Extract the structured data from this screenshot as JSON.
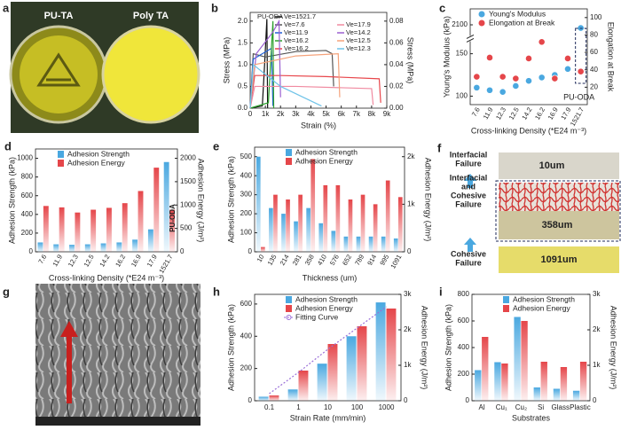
{
  "panels": {
    "a": {
      "label": "a",
      "captions": [
        "PU-TA",
        "Poly TA"
      ]
    },
    "f": {
      "label": "f",
      "annotations": [
        [
          "Interfacial",
          "Failure"
        ],
        [
          "Interfacial",
          "and",
          "Cohesive",
          "Failure"
        ],
        [
          "Cohesive",
          "Failure"
        ]
      ],
      "image_labels": [
        "10um",
        "358um",
        "1091um"
      ]
    },
    "g": {
      "label": "g"
    }
  },
  "chart_data": [
    {
      "panel": "b",
      "type": "line",
      "x_label": "Strain (%)",
      "y_label": "Stress (MPa)",
      "y2_label": "Stress (MPa)",
      "annotation": "PU-ODA",
      "xlim": [
        0,
        9000
      ],
      "xticks": [
        0,
        {
          "value": 1000,
          "label": "1k"
        },
        {
          "value": 2000,
          "label": "2k"
        },
        {
          "value": 3000,
          "label": "3k"
        },
        {
          "value": 4000,
          "label": "4k"
        },
        {
          "value": 5000,
          "label": "5k"
        },
        {
          "value": 6000,
          "label": "6k"
        },
        {
          "value": 7000,
          "label": "7k"
        },
        {
          "value": 8000,
          "label": "8k"
        },
        {
          "value": 9000,
          "label": "9k"
        }
      ],
      "ylim": [
        0,
        2.2
      ],
      "yticks": [
        {
          "value": 0,
          "label": "0.0"
        },
        {
          "value": 0.5,
          "label": "0.5"
        },
        {
          "value": 1,
          "label": "1.0"
        },
        {
          "value": 1.5,
          "label": "1.5"
        },
        {
          "value": 2,
          "label": "2.0"
        }
      ],
      "y2lim": [
        0,
        0.088
      ],
      "y2ticks": [
        {
          "value": 0,
          "label": "0.00"
        },
        {
          "value": 0.02,
          "label": "0.02"
        },
        {
          "value": 0.04,
          "label": "0.04"
        },
        {
          "value": 0.06,
          "label": "0.06"
        },
        {
          "value": 0.08,
          "label": "0.08"
        }
      ],
      "series": [
        {
          "name": "Ve=1521.7",
          "color": "#111111",
          "x": [
            0,
            800,
            950,
            1100,
            1150
          ],
          "values": [
            0,
            0.05,
            1.0,
            2.05,
            0
          ]
        },
        {
          "name": "Ve=7.6",
          "color": "#555555",
          "axis": "y2",
          "x": [
            0,
            200,
            1000,
            3000,
            5000,
            5400,
            5500
          ],
          "values": [
            0,
            0.05,
            0.047,
            0.052,
            0.053,
            0.05,
            0.02
          ]
        },
        {
          "name": "Ve=11.9",
          "color": "#1f5fd6",
          "axis": "y2",
          "x": [
            0,
            200,
            800,
            1400,
            1500
          ],
          "values": [
            0,
            0.045,
            0.05,
            0.055,
            0.002
          ]
        },
        {
          "name": "Ve=16.2",
          "color": "#2ca02c",
          "axis": "y2",
          "x": [
            0,
            1200,
            1500,
            1550
          ],
          "values": [
            0,
            0.005,
            0.08,
            0
          ]
        },
        {
          "name": "Ve=16.2",
          "color": "#e8464b",
          "axis": "y2",
          "x": [
            0,
            300,
            2000,
            5000,
            8500,
            8600
          ],
          "values": [
            0,
            0.03,
            0.03,
            0.029,
            0.027,
            0.005
          ]
        },
        {
          "name": "Ve=17.9",
          "color": "#f08aa0",
          "axis": "y2",
          "x": [
            0,
            300,
            3000,
            8000,
            8100
          ],
          "values": [
            0,
            0.02,
            0.02,
            0.018,
            0.003
          ]
        },
        {
          "name": "Ve=14.2",
          "color": "#9a5fd0",
          "axis": "y2",
          "x": [
            0,
            400,
            1500,
            1900,
            2000
          ],
          "values": [
            0,
            0.05,
            0.07,
            0.08,
            0.01
          ]
        },
        {
          "name": "Ve=12.5",
          "color": "#f5a27a",
          "axis": "y2",
          "x": [
            0,
            300,
            3000,
            5800,
            5900
          ],
          "values": [
            0,
            0.04,
            0.048,
            0.05,
            0.01
          ]
        },
        {
          "name": "Ve=12.3",
          "color": "#6fc3e8",
          "axis": "y2",
          "x": [
            0,
            200,
            2000,
            4700
          ],
          "values": [
            0,
            0.04,
            0.02,
            0.002
          ]
        }
      ]
    },
    {
      "panel": "c",
      "type": "scatter",
      "x_label": "Cross-linking Density (*E24 m⁻³)",
      "y_label": "Young's Modulus (kPa)",
      "y2_label": "Elongation at Break",
      "annotation": "PU-ODA",
      "categories": [
        "7.6",
        "11.9",
        "12.3",
        "12.5",
        "14.2",
        "16.2",
        "16.9",
        "17.9",
        "1521.7"
      ],
      "ylim": [
        90,
        2200
      ],
      "y_break": [
        160,
        2050
      ],
      "yticks": [
        100,
        150,
        2100
      ],
      "y2lim": [
        0,
        110
      ],
      "y2ticks": [
        20,
        40,
        60,
        80,
        100
      ],
      "series": [
        {
          "name": "Young's Modulus",
          "color": "#4aa8e0",
          "values": [
            110,
            107,
            105,
            112,
            118,
            122,
            125,
            132,
            2080
          ]
        },
        {
          "name": "Elongation at Break",
          "color": "#e5464a",
          "axis": "y2",
          "values": [
            32,
            54,
            32,
            30,
            53,
            72,
            30,
            53,
            38
          ]
        }
      ]
    },
    {
      "panel": "d",
      "type": "bar",
      "x_label": "Cross-linking Density (*E24 m⁻³)",
      "y_label": "Adhesion Strength (kPa)",
      "y2_label": "Adhesion Energy (J/m²)",
      "annotation": "PU-ODA",
      "categories": [
        "7.6",
        "11.9",
        "12.3",
        "12.5",
        "14.2",
        "16.2",
        "16.9",
        "17.9",
        "1521.7"
      ],
      "ylim": [
        0,
        1100
      ],
      "yticks": [
        0,
        200,
        400,
        600,
        800,
        1000
      ],
      "y2lim": [
        0,
        2200
      ],
      "y2ticks": [
        0,
        500,
        1000,
        1500,
        2000
      ],
      "series": [
        {
          "name": "Adhesion Strength",
          "color": "#4aa8e0",
          "values": [
            100,
            80,
            75,
            80,
            90,
            100,
            130,
            240,
            960
          ]
        },
        {
          "name": "Adhesion Energy",
          "color": "#e5464a",
          "axis": "y2",
          "values": [
            980,
            950,
            840,
            900,
            940,
            1040,
            1300,
            1800,
            900
          ]
        }
      ]
    },
    {
      "panel": "e",
      "type": "bar",
      "x_label": "Thickness (um)",
      "y_label": "Adhesion Strength (kPa)",
      "y2_label": "Adhesion Energy (J/m²)",
      "categories": [
        "10",
        "135",
        "214",
        "281",
        "358",
        "410",
        "576",
        "652",
        "789",
        "914",
        "995",
        "1091"
      ],
      "ylim": [
        0,
        550
      ],
      "yticks": [
        0,
        100,
        200,
        300,
        400,
        500
      ],
      "y2lim": [
        0,
        2200
      ],
      "y2ticks": [
        0,
        {
          "value": 1000,
          "label": "1k"
        },
        {
          "value": 2000,
          "label": "2k"
        }
      ],
      "series": [
        {
          "name": "Adhesion Strength",
          "color": "#4aa8e0",
          "values": [
            500,
            230,
            200,
            160,
            230,
            150,
            110,
            80,
            80,
            80,
            80,
            70
          ]
        },
        {
          "name": "Adhesion Energy",
          "color": "#e5464a",
          "axis": "y2",
          "values": [
            100,
            1200,
            1100,
            1200,
            1950,
            1400,
            1400,
            1100,
            1200,
            1000,
            1500,
            1150
          ]
        }
      ]
    },
    {
      "panel": "h",
      "type": "bar",
      "x_label": "Strain Rate (mm/min)",
      "y_label": "Adhesion Strength (kPa)",
      "y2_label": "Adhesion Energy (J/m²)",
      "categories": [
        "0.1",
        "1",
        "10",
        "100",
        "1000"
      ],
      "ylim": [
        0,
        660
      ],
      "yticks": [
        0,
        200,
        400,
        600
      ],
      "y2lim": [
        0,
        3000
      ],
      "y2ticks": [
        0,
        {
          "value": 1000,
          "label": "1k"
        },
        {
          "value": 2000,
          "label": "2k"
        },
        {
          "value": 3000,
          "label": "3k"
        }
      ],
      "series": [
        {
          "name": "Adhesion Strength",
          "color": "#4aa8e0",
          "values": [
            25,
            70,
            230,
            400,
            610
          ]
        },
        {
          "name": "Adhesion Energy",
          "color": "#e5464a",
          "axis": "y2",
          "values": [
            150,
            850,
            1600,
            2100,
            2600
          ]
        },
        {
          "name": "Fitting Curve",
          "color": "#9a6fd8",
          "axis": "y2",
          "type": "line",
          "values": [
            200,
            800,
            1450,
            2050,
            2650
          ]
        }
      ]
    },
    {
      "panel": "i",
      "type": "bar",
      "x_label": "Substrates",
      "y_label": "Adhesion Strength (kPa)",
      "y2_label": "Adhesion Energy (J/m²)",
      "categories": [
        "Al",
        "Cu₁",
        "Cu₂",
        "Si",
        "Glass",
        "Plastic"
      ],
      "ylim": [
        0,
        800
      ],
      "yticks": [
        0,
        200,
        400,
        600,
        800
      ],
      "y2lim": [
        0,
        3000
      ],
      "y2ticks": [
        0,
        {
          "value": 1000,
          "label": "1k"
        },
        {
          "value": 2000,
          "label": "2k"
        },
        {
          "value": 3000,
          "label": "3k"
        }
      ],
      "series": [
        {
          "name": "Adhesion Strength",
          "color": "#4aa8e0",
          "values": [
            230,
            290,
            630,
            100,
            90,
            75
          ]
        },
        {
          "name": "Adhesion Energy",
          "color": "#e5464a",
          "axis": "y2",
          "values": [
            1800,
            1050,
            2250,
            1100,
            950,
            1100
          ]
        }
      ]
    }
  ]
}
